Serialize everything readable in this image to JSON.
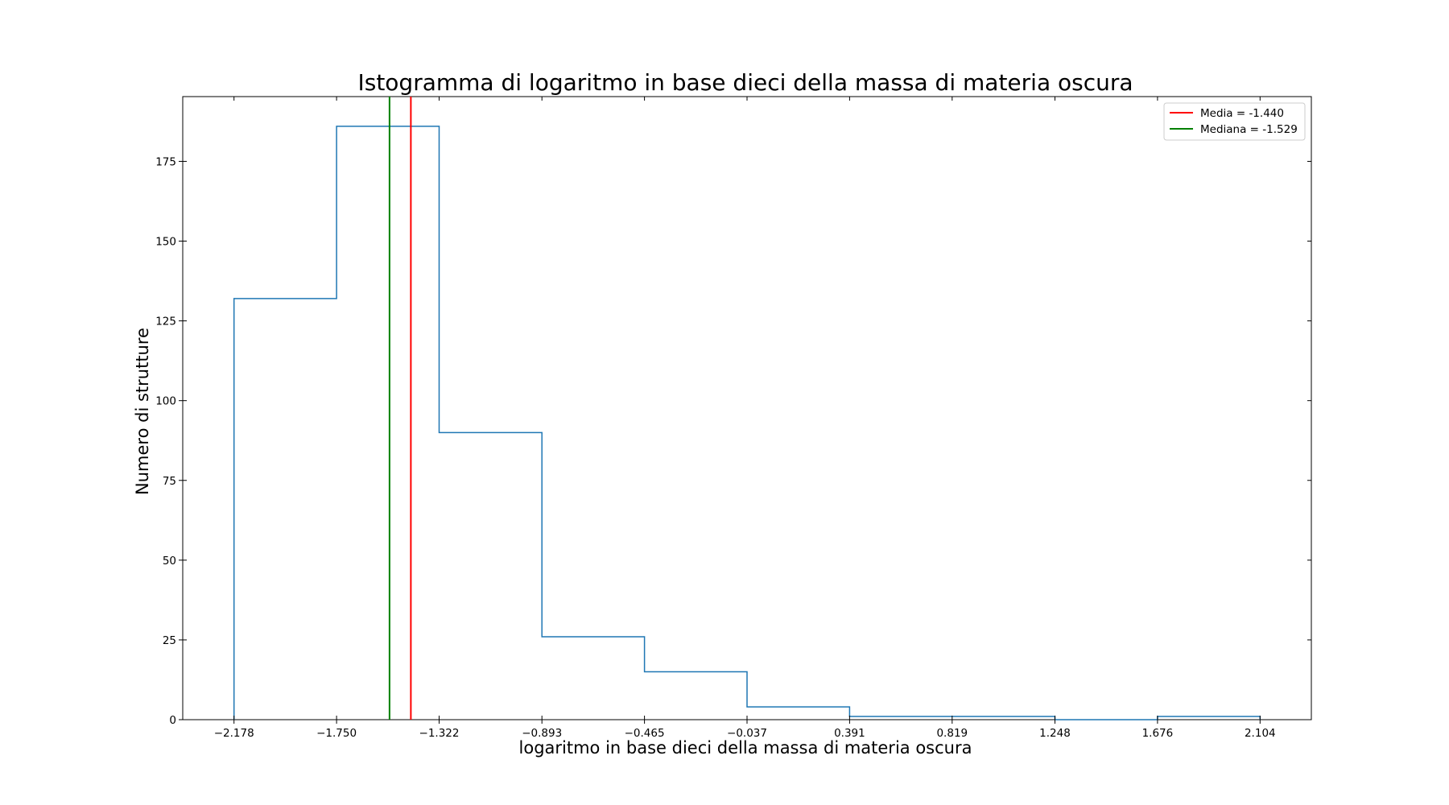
{
  "chart_data": {
    "type": "histogram",
    "title": "Istogramma di logaritmo in base dieci della massa di materia oscura",
    "xlabel": "logaritmo in base dieci della massa di materia oscura",
    "ylabel": "Numero di strutture",
    "bin_edges": [
      -2.178,
      -1.75,
      -1.322,
      -0.893,
      -0.465,
      -0.037,
      0.391,
      0.819,
      1.248,
      1.676,
      2.104
    ],
    "counts": [
      132,
      186,
      90,
      26,
      15,
      4,
      1,
      1,
      0,
      1
    ],
    "histtype": "step",
    "series_color": "#1f77b4",
    "xticks": [
      -2.178,
      -1.75,
      -1.322,
      -0.893,
      -0.465,
      -0.037,
      0.391,
      0.819,
      1.248,
      1.676,
      2.104
    ],
    "xtick_labels": [
      "−2.178",
      "−1.750",
      "−1.322",
      "−0.893",
      "−0.465",
      "−0.037",
      "0.391",
      "0.819",
      "1.248",
      "1.676",
      "2.104"
    ],
    "yticks": [
      0,
      25,
      50,
      75,
      100,
      125,
      150,
      175
    ],
    "ytick_labels": [
      "0",
      "25",
      "50",
      "75",
      "100",
      "125",
      "150",
      "175"
    ],
    "xlim": [
      -2.392,
      2.318
    ],
    "ylim": [
      0,
      195.3
    ],
    "reference_lines": [
      {
        "label": "Media = -1.440",
        "value": -1.44,
        "color": "#ff0000"
      },
      {
        "label": "Mediana = -1.529",
        "value": -1.529,
        "color": "#008000"
      }
    ],
    "legend_position": "upper right",
    "grid": false
  }
}
